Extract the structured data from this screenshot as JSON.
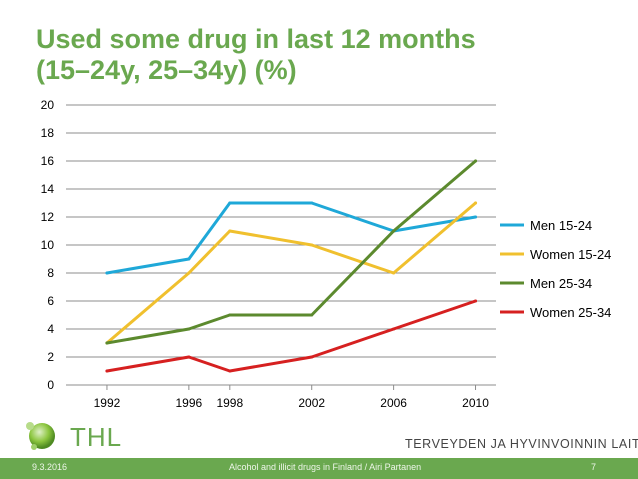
{
  "slide": {
    "title_line1": "Used some drug in last 12 months",
    "title_line2": "(15–24y, 25–34y) (%)",
    "logo_text": "THL",
    "org_name": "TERVEYDEN JA HYVINVOINNIN LAITOS",
    "footer_date": "9.3.2016",
    "footer_center": "Alcohol and illicit drugs in Finland / Airi Partanen",
    "footer_page": "7"
  },
  "colors": {
    "title": "#6aa84f",
    "footer": "#6aa84f",
    "grid": "#8c8c8c"
  },
  "chart_data": {
    "type": "line",
    "title": "Used some drug in last 12 months (15–24y, 25–34y) (%)",
    "x": [
      1992,
      1996,
      1998,
      2002,
      2006,
      2010
    ],
    "x_tick_labels": [
      "1992",
      "1996",
      "1998",
      "2002",
      "2006",
      "2010"
    ],
    "y_ticks": [
      0,
      2,
      4,
      6,
      8,
      10,
      12,
      14,
      16,
      18,
      20
    ],
    "ylim": [
      0,
      20
    ],
    "xlabel": "",
    "ylabel": "",
    "grid": true,
    "legend_position": "right",
    "series": [
      {
        "name": "Men 15-24",
        "color": "#1fa8d8",
        "values": [
          8,
          9,
          13,
          13,
          11,
          12
        ]
      },
      {
        "name": "Women 15-24",
        "color": "#f0c02e",
        "values": [
          3,
          8,
          11,
          10,
          8,
          13
        ]
      },
      {
        "name": "Men 25-34",
        "color": "#5c8a2e",
        "values": [
          3,
          4,
          5,
          5,
          11,
          16
        ]
      },
      {
        "name": "Women 25-34",
        "color": "#d62020",
        "values": [
          1,
          2,
          1,
          2,
          4,
          6
        ]
      }
    ]
  }
}
